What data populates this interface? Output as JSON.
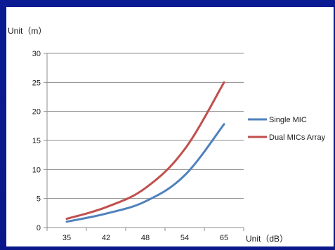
{
  "chart_data": {
    "type": "line",
    "title": "",
    "ylabel": "Unit（m）",
    "xlabel": "Unit（dB）",
    "categories": [
      "35",
      "42",
      "48",
      "54",
      "65"
    ],
    "ylim": [
      0,
      30
    ],
    "yticks": [
      0,
      5,
      10,
      15,
      20,
      25,
      30
    ],
    "grid": true,
    "legend": "right",
    "series": [
      {
        "name": "Single MIC",
        "color": "#4f81bd",
        "values": [
          1.0,
          2.4,
          4.5,
          9.0,
          17.8
        ]
      },
      {
        "name": "Dual MICs Array",
        "color": "#c0504d",
        "values": [
          1.5,
          3.5,
          6.8,
          13.5,
          25.0
        ]
      }
    ]
  }
}
